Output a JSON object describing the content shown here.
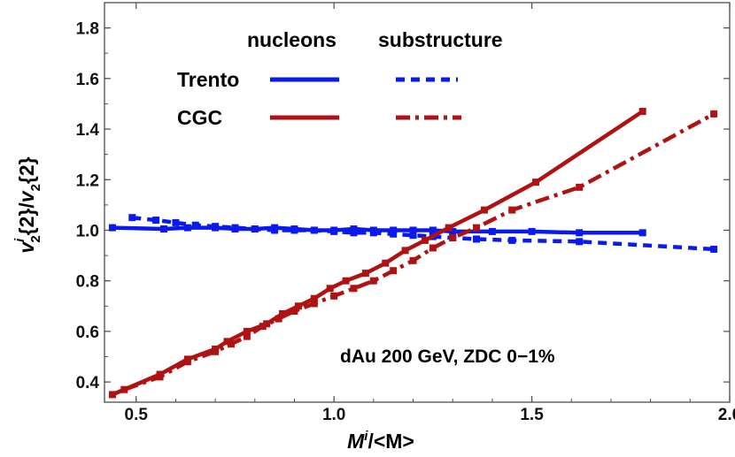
{
  "chart_data": {
    "type": "line",
    "xlabel": "M^i/<M>",
    "ylabel": "v_2^i{2}/v_2{2}",
    "xlim": [
      0.42,
      2.0
    ],
    "ylim": [
      0.32,
      1.9
    ],
    "xticks": [
      "0.5",
      "1.0",
      "1.5",
      "2.0"
    ],
    "yticks": [
      "0.4",
      "0.6",
      "0.8",
      "1.0",
      "1.2",
      "1.4",
      "1.6",
      "1.8"
    ],
    "legend": {
      "col_nucleons": "nucleons",
      "col_substructure": "substructure",
      "row_trento": "Trento",
      "row_cgc": "CGC",
      "placement": "top-center"
    },
    "annotation": "dAu 200 GeV, ZDC 0−1%",
    "colors": {
      "trento": "#0a1aef",
      "cgc": "#b01212",
      "frame": "#4d4d4d"
    },
    "series": [
      {
        "model": "Trento",
        "variant": "nucleons",
        "style": "solid",
        "x": [
          0.44,
          0.57,
          0.63,
          0.7,
          0.75,
          0.8,
          0.85,
          0.9,
          0.95,
          1.0,
          1.05,
          1.1,
          1.15,
          1.2,
          1.25,
          1.3,
          1.4,
          1.5,
          1.62,
          1.78
        ],
        "y": [
          1.01,
          1.005,
          1.01,
          1.01,
          1.005,
          1.005,
          1.01,
          1.005,
          1.0,
          1.0,
          1.005,
          1.0,
          1.0,
          1.0,
          1.0,
          0.995,
          0.995,
          0.995,
          0.99,
          0.99
        ]
      },
      {
        "model": "Trento",
        "variant": "substructure",
        "style": "dashed",
        "x": [
          0.49,
          0.55,
          0.6,
          0.65,
          0.7,
          0.75,
          0.8,
          0.85,
          0.9,
          0.95,
          1.0,
          1.05,
          1.1,
          1.15,
          1.2,
          1.25,
          1.3,
          1.36,
          1.45,
          1.62,
          1.96
        ],
        "y": [
          1.05,
          1.04,
          1.03,
          1.02,
          1.015,
          1.01,
          1.005,
          1.0,
          1.0,
          1.0,
          0.995,
          0.99,
          0.99,
          0.985,
          0.98,
          0.975,
          0.97,
          0.965,
          0.96,
          0.955,
          0.925
        ]
      },
      {
        "model": "CGC",
        "variant": "nucleons",
        "style": "solid",
        "x": [
          0.44,
          0.56,
          0.63,
          0.7,
          0.73,
          0.78,
          0.83,
          0.87,
          0.91,
          0.95,
          0.99,
          1.03,
          1.08,
          1.13,
          1.18,
          1.23,
          1.29,
          1.38,
          1.51,
          1.78
        ],
        "y": [
          0.35,
          0.43,
          0.49,
          0.53,
          0.56,
          0.6,
          0.63,
          0.67,
          0.7,
          0.73,
          0.77,
          0.8,
          0.83,
          0.87,
          0.92,
          0.96,
          1.01,
          1.08,
          1.19,
          1.47
        ]
      },
      {
        "model": "CGC",
        "variant": "substructure",
        "style": "dashdot",
        "x": [
          0.47,
          0.56,
          0.63,
          0.7,
          0.74,
          0.78,
          0.82,
          0.86,
          0.9,
          0.95,
          1.0,
          1.05,
          1.1,
          1.15,
          1.2,
          1.25,
          1.3,
          1.36,
          1.45,
          1.62,
          1.96
        ],
        "y": [
          0.37,
          0.42,
          0.48,
          0.52,
          0.55,
          0.58,
          0.62,
          0.65,
          0.68,
          0.71,
          0.74,
          0.77,
          0.8,
          0.84,
          0.88,
          0.93,
          0.97,
          1.01,
          1.08,
          1.17,
          1.46
        ]
      }
    ]
  }
}
